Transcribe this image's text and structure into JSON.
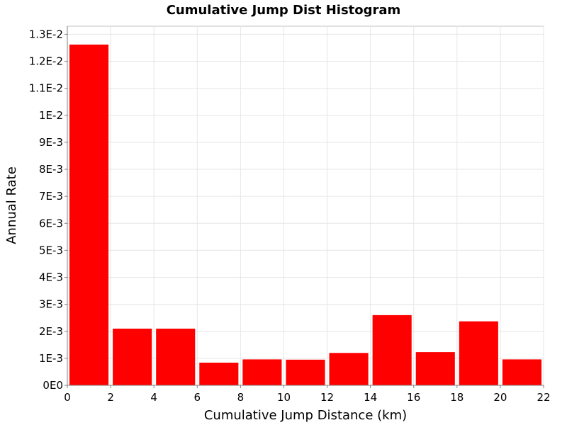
{
  "chart_data": {
    "type": "bar",
    "title": "Cumulative Jump Dist Histogram",
    "xlabel": "Cumulative Jump Distance (km)",
    "ylabel": "Annual Rate",
    "bin_width": 2,
    "bins": [
      {
        "x0": 0,
        "x1": 2,
        "value": 0.01262
      },
      {
        "x0": 2,
        "x1": 4,
        "value": 0.0021
      },
      {
        "x0": 4,
        "x1": 6,
        "value": 0.0021
      },
      {
        "x0": 6,
        "x1": 8,
        "value": 0.00084
      },
      {
        "x0": 8,
        "x1": 10,
        "value": 0.00096
      },
      {
        "x0": 10,
        "x1": 12,
        "value": 0.00095
      },
      {
        "x0": 12,
        "x1": 14,
        "value": 0.0012
      },
      {
        "x0": 14,
        "x1": 16,
        "value": 0.0026
      },
      {
        "x0": 16,
        "x1": 18,
        "value": 0.00123
      },
      {
        "x0": 18,
        "x1": 20,
        "value": 0.00237
      },
      {
        "x0": 20,
        "x1": 22,
        "value": 0.00096
      }
    ],
    "xlim": [
      0,
      22
    ],
    "ylim": [
      0,
      0.0133
    ],
    "x_ticks": [
      0,
      2,
      4,
      6,
      8,
      10,
      12,
      14,
      16,
      18,
      20,
      22
    ],
    "x_tick_labels": [
      "0",
      "2",
      "4",
      "6",
      "8",
      "10",
      "12",
      "14",
      "16",
      "18",
      "20",
      "22"
    ],
    "y_ticks": [
      0,
      0.001,
      0.002,
      0.003,
      0.004,
      0.005,
      0.006,
      0.007,
      0.008,
      0.009,
      0.01,
      0.011,
      0.012,
      0.013
    ],
    "y_tick_labels": [
      "0E0",
      "1E-3",
      "2E-3",
      "3E-3",
      "4E-3",
      "5E-3",
      "6E-3",
      "7E-3",
      "8E-3",
      "9E-3",
      "1E-2",
      "1.1E-2",
      "1.2E-2",
      "1.3E-2"
    ],
    "grid": true,
    "bar_color": "#ff0000",
    "grid_color": "#e6e6e6",
    "axis_color": "#808080"
  }
}
